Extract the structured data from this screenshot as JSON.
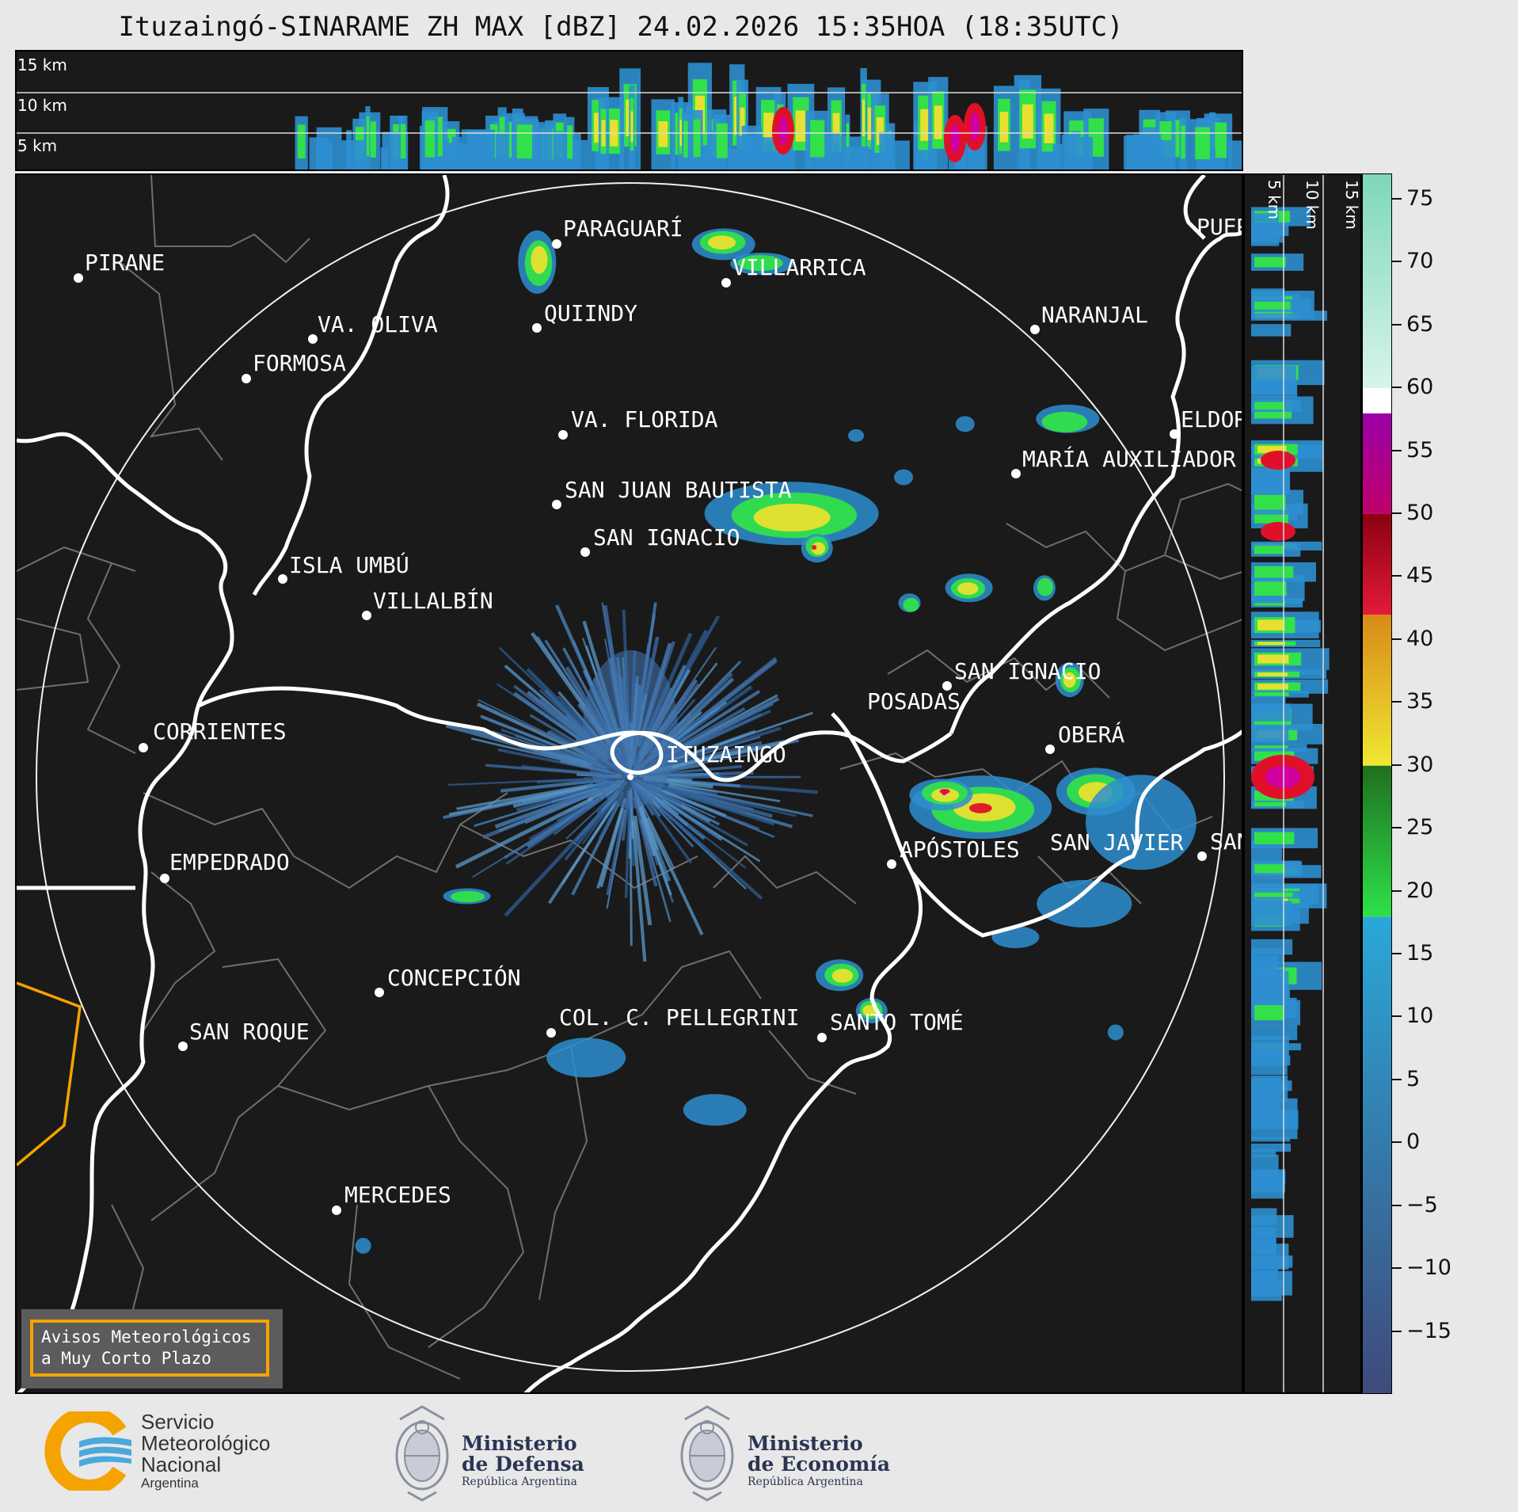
{
  "title": "Ituzaingó-SINARAME ZH MAX [dBZ] 24.02.2026 15:35HOA (18:35UTC)",
  "top_height_labels": [
    "15 km",
    "10 km",
    "5 km"
  ],
  "side_height_labels": [
    "5 km",
    "10 km",
    "15 km"
  ],
  "radar_site": "ITUZAINGÓ",
  "cities": [
    "PIRANE",
    "PARAGUARÍ",
    "VILLARRICA",
    "QUIINDY",
    "VA. OLIVA",
    "NARANJAL",
    "FORMOSA",
    "VA. FLORIDA",
    "ELDOR",
    "MARÍA AUXILIADOR",
    "SAN JUAN BAUTISTA",
    "SAN IGNACIO",
    "ISLA UMBÚ",
    "VILLALBÍN",
    "SAN IGNACIO",
    "POSADAS",
    "CORRIENTES",
    "OBERÁ",
    "EMPEDRADO",
    "APÓSTOLES",
    "SAN JAVIER",
    "SAN",
    "CONCEPCIÓN",
    "COL. C. PELLEGRINI",
    "SANTO TOMÉ",
    "SAN ROQUE",
    "MERCEDES",
    "PUER"
  ],
  "colorbar": {
    "unit": "dBZ",
    "min": -20,
    "max": 77,
    "tick_labels": [
      "75",
      "70",
      "65",
      "60",
      "55",
      "50",
      "45",
      "40",
      "35",
      "30",
      "25",
      "20",
      "15",
      "10",
      "5",
      "0",
      "−5",
      "−10",
      "−15"
    ],
    "tick_values": [
      75,
      70,
      65,
      60,
      55,
      50,
      45,
      40,
      35,
      30,
      25,
      20,
      15,
      10,
      5,
      0,
      -5,
      -10,
      -15
    ],
    "bands": [
      {
        "from": -20,
        "to": 18,
        "color": "#3f4a7a",
        "color_top": "#2aa8d8"
      },
      {
        "from": 18,
        "to": 30,
        "color": "#2ee04a",
        "color_top": "#1f6f1f"
      },
      {
        "from": 30,
        "to": 42,
        "color": "#f0e830",
        "color_top": "#d88a18"
      },
      {
        "from": 42,
        "to": 50,
        "color": "#e41a3a",
        "color_top": "#8a0010"
      },
      {
        "from": 50,
        "to": 58,
        "color": "#c0006a",
        "color_top": "#9a00a8"
      },
      {
        "from": 58,
        "to": 60,
        "color": "#ffffff",
        "color_top": "#ffffff"
      },
      {
        "from": 60,
        "to": 77,
        "color": "#d8f4ea",
        "color_top": "#7ed8b8"
      }
    ]
  },
  "warning": {
    "line1": "Avisos Meteorológicos",
    "line2": "a Muy Corto Plazo"
  },
  "logos": {
    "smn": {
      "line1": "Servicio",
      "line2": "Meteorológico",
      "line3": "Nacional",
      "line4": "Argentina"
    },
    "defensa": {
      "line1": "Ministerio",
      "line2": "de Defensa",
      "line3": "República Argentina"
    },
    "economia": {
      "line1": "Ministerio",
      "line2": "de Economía",
      "line3": "República Argentina"
    }
  }
}
